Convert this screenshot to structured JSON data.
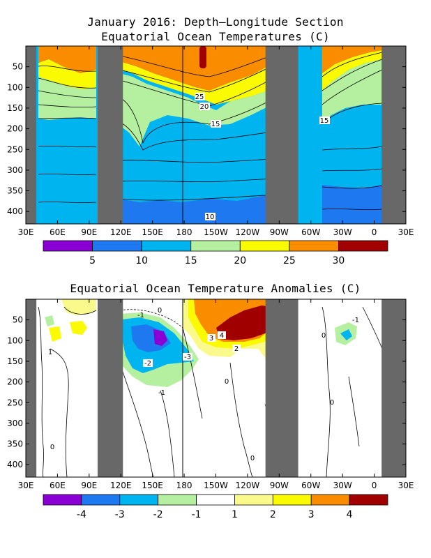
{
  "chart_data": [
    {
      "type": "heatmap",
      "title_line1": "January 2016: Depth–Longitude Section",
      "title_line2": "Equatorial Ocean Temperatures (C)",
      "x_tick_labels": [
        "30E",
        "60E",
        "90E",
        "120E",
        "150E",
        "180",
        "150W",
        "120W",
        "90W",
        "60W",
        "30W",
        "0",
        "30E"
      ],
      "y_tick_labels": [
        "50",
        "100",
        "150",
        "200",
        "250",
        "300",
        "350",
        "400"
      ],
      "y_ticks": [
        50,
        100,
        150,
        200,
        250,
        300,
        350,
        400
      ],
      "ylim": [
        0,
        430
      ],
      "xlim": [
        30,
        390
      ],
      "colorbar": {
        "labels": [
          "5",
          "10",
          "15",
          "20",
          "25",
          "30"
        ],
        "colors": [
          "#8a00d4",
          "#1e78f0",
          "#00b4f0",
          "#b4f0a0",
          "#fafa00",
          "#fa8c00",
          "#a00000"
        ]
      },
      "contour_labels": [
        "25",
        "20",
        "15",
        "15",
        "10"
      ],
      "land_lon_ranges": [
        [
          30,
          40
        ],
        [
          98,
          122
        ],
        [
          257,
          288
        ],
        [
          367,
          390
        ]
      ]
    },
    {
      "type": "heatmap",
      "title": "Equatorial Ocean Temperature Anomalies (C)",
      "x_tick_labels": [
        "30E",
        "60E",
        "90E",
        "120E",
        "150E",
        "180",
        "150W",
        "120W",
        "90W",
        "60W",
        "30W",
        "0",
        "30E"
      ],
      "y_tick_labels": [
        "50",
        "100",
        "150",
        "200",
        "250",
        "300",
        "350",
        "400"
      ],
      "y_ticks": [
        50,
        100,
        150,
        200,
        250,
        300,
        350,
        400
      ],
      "ylim": [
        0,
        430
      ],
      "xlim": [
        30,
        390
      ],
      "colorbar": {
        "labels": [
          "-4",
          "-3",
          "-2",
          "-1",
          "1",
          "2",
          "3",
          "4"
        ],
        "colors": [
          "#8a00d4",
          "#1e78f0",
          "#00b4f0",
          "#b4f0a0",
          "#ffffff",
          "#fafa8c",
          "#fafa00",
          "#fa8c00",
          "#a00000"
        ]
      },
      "contour_labels": [
        "0",
        "-1",
        "-2",
        "-3",
        "1",
        "2",
        "3",
        "4",
        "0",
        "-1",
        "0",
        "0",
        "0",
        "-1",
        "0"
      ],
      "land_lon_ranges": [
        [
          30,
          40
        ],
        [
          98,
          122
        ],
        [
          257,
          288
        ],
        [
          367,
          390
        ]
      ]
    }
  ]
}
